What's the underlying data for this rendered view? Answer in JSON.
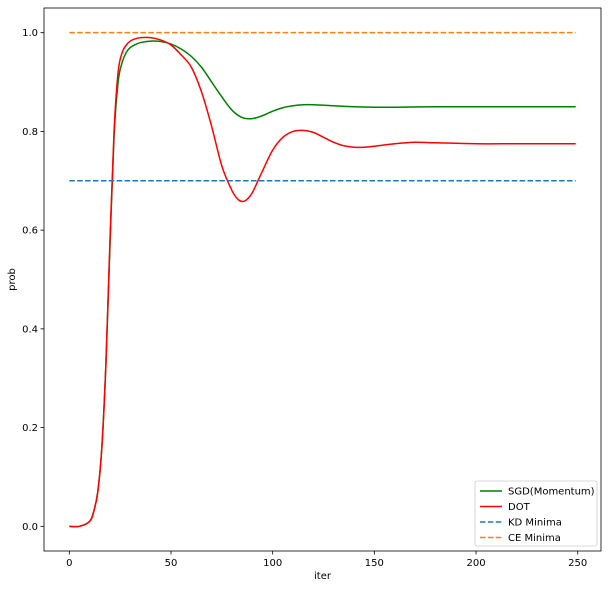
{
  "chart_data": {
    "type": "line",
    "xlabel": "iter",
    "ylabel": "prob",
    "xlim": [
      -12.45,
      261.45
    ],
    "ylim": [
      -0.05,
      1.05
    ],
    "xticks": [
      0,
      50,
      100,
      150,
      200,
      250
    ],
    "yticks": [
      0.0,
      0.2,
      0.4,
      0.6,
      0.8,
      1.0
    ],
    "xtick_labels": [
      "0",
      "50",
      "100",
      "150",
      "200",
      "250"
    ],
    "ytick_labels": [
      "0.0",
      "0.2",
      "0.4",
      "0.6",
      "0.8",
      "1.0"
    ],
    "grid": false,
    "legend_position": "lower-right",
    "series": [
      {
        "name": "SGD(Momentum)",
        "color": "#008000",
        "style": "solid",
        "x": [
          0,
          5,
          10,
          12,
          14,
          16,
          18,
          20,
          22,
          24,
          26,
          28,
          30,
          32,
          35,
          40,
          45,
          50,
          55,
          60,
          65,
          70,
          75,
          80,
          85,
          90,
          95,
          100,
          105,
          110,
          115,
          120,
          130,
          140,
          150,
          160,
          180,
          200,
          220,
          249
        ],
        "y": [
          0.0,
          0.0,
          0.01,
          0.03,
          0.07,
          0.16,
          0.33,
          0.57,
          0.79,
          0.9,
          0.94,
          0.96,
          0.97,
          0.975,
          0.98,
          0.983,
          0.982,
          0.977,
          0.967,
          0.952,
          0.93,
          0.9,
          0.87,
          0.843,
          0.828,
          0.826,
          0.832,
          0.841,
          0.848,
          0.852,
          0.854,
          0.854,
          0.852,
          0.85,
          0.849,
          0.849,
          0.85,
          0.85,
          0.85,
          0.85
        ]
      },
      {
        "name": "DOT",
        "color": "#ff0000",
        "style": "solid",
        "x": [
          0,
          5,
          10,
          12,
          14,
          16,
          18,
          20,
          22,
          24,
          26,
          28,
          30,
          32,
          35,
          40,
          45,
          50,
          55,
          60,
          65,
          70,
          75,
          80,
          83,
          85,
          87,
          90,
          95,
          100,
          105,
          110,
          115,
          120,
          125,
          130,
          135,
          140,
          145,
          150,
          160,
          170,
          180,
          200,
          220,
          249
        ],
        "y": [
          0.0,
          0.0,
          0.01,
          0.03,
          0.07,
          0.16,
          0.33,
          0.58,
          0.8,
          0.92,
          0.96,
          0.975,
          0.983,
          0.987,
          0.99,
          0.99,
          0.985,
          0.975,
          0.955,
          0.93,
          0.88,
          0.81,
          0.73,
          0.68,
          0.662,
          0.658,
          0.661,
          0.676,
          0.72,
          0.762,
          0.788,
          0.8,
          0.802,
          0.798,
          0.788,
          0.778,
          0.771,
          0.768,
          0.768,
          0.77,
          0.775,
          0.778,
          0.777,
          0.775,
          0.775,
          0.775
        ]
      },
      {
        "name": "KD Minima",
        "color": "#1f77b4",
        "style": "dashed",
        "x": [
          0,
          249
        ],
        "y": [
          0.7,
          0.7
        ]
      },
      {
        "name": "CE Minima",
        "color": "#ff7f0e",
        "style": "dashed",
        "x": [
          0,
          249
        ],
        "y": [
          1.0,
          1.0
        ]
      }
    ]
  }
}
